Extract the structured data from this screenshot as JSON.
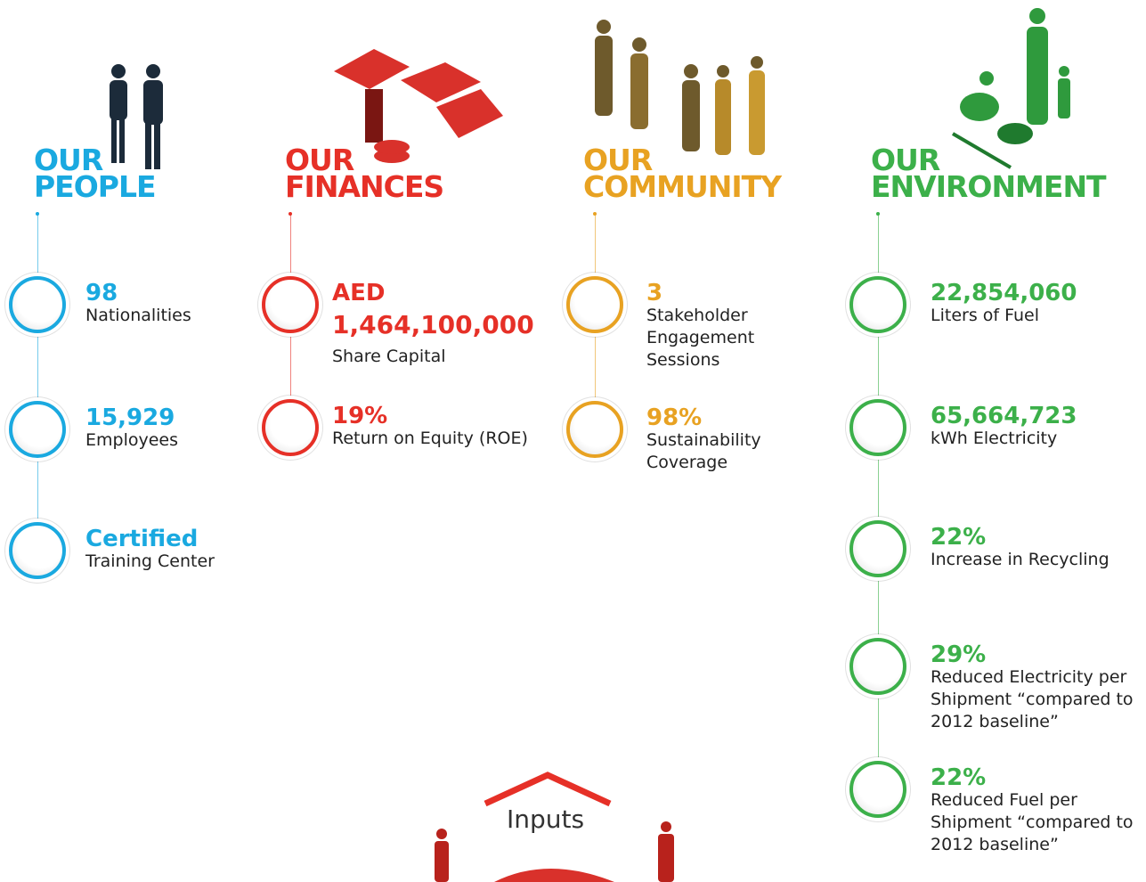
{
  "columns": [
    {
      "title": [
        "OUR",
        "PEOPLE"
      ],
      "color": "#1aa9e0",
      "items": [
        {
          "value": [
            "98"
          ],
          "label": "Nationalities"
        },
        {
          "value": [
            "15,929"
          ],
          "label": "Employees"
        },
        {
          "value": [
            "Certified"
          ],
          "label": "Training Center"
        }
      ]
    },
    {
      "title": [
        "OUR",
        "FINANCES"
      ],
      "color": "#e63027",
      "items": [
        {
          "value": [
            "AED",
            "1,464,100,000"
          ],
          "label": "Share Capital"
        },
        {
          "value": [
            "19%"
          ],
          "label": "Return on Equity (ROE)"
        }
      ]
    },
    {
      "title": [
        "OUR",
        "COMMUNITY"
      ],
      "color": "#e8a222",
      "items": [
        {
          "value": [
            "3"
          ],
          "label": "Stakeholder Engagement Sessions"
        },
        {
          "value": [
            "98%"
          ],
          "label": "Sustainability Coverage"
        }
      ]
    },
    {
      "title": [
        "OUR",
        "ENVIRONMENT"
      ],
      "color": "#3cb04a",
      "items": [
        {
          "value": [
            "22,854,060"
          ],
          "label": "Liters of Fuel"
        },
        {
          "value": [
            "65,664,723"
          ],
          "label": "kWh Electricity"
        },
        {
          "value": [
            "22%"
          ],
          "label": "Increase in Recycling"
        },
        {
          "value": [
            "29%"
          ],
          "label": "Reduced Electricity per Shipment “compared to 2012 baseline”"
        },
        {
          "value": [
            "22%"
          ],
          "label": "Reduced Fuel per Shipment “compared to 2012 baseline”"
        }
      ]
    }
  ],
  "footer": {
    "title": "Inputs"
  }
}
